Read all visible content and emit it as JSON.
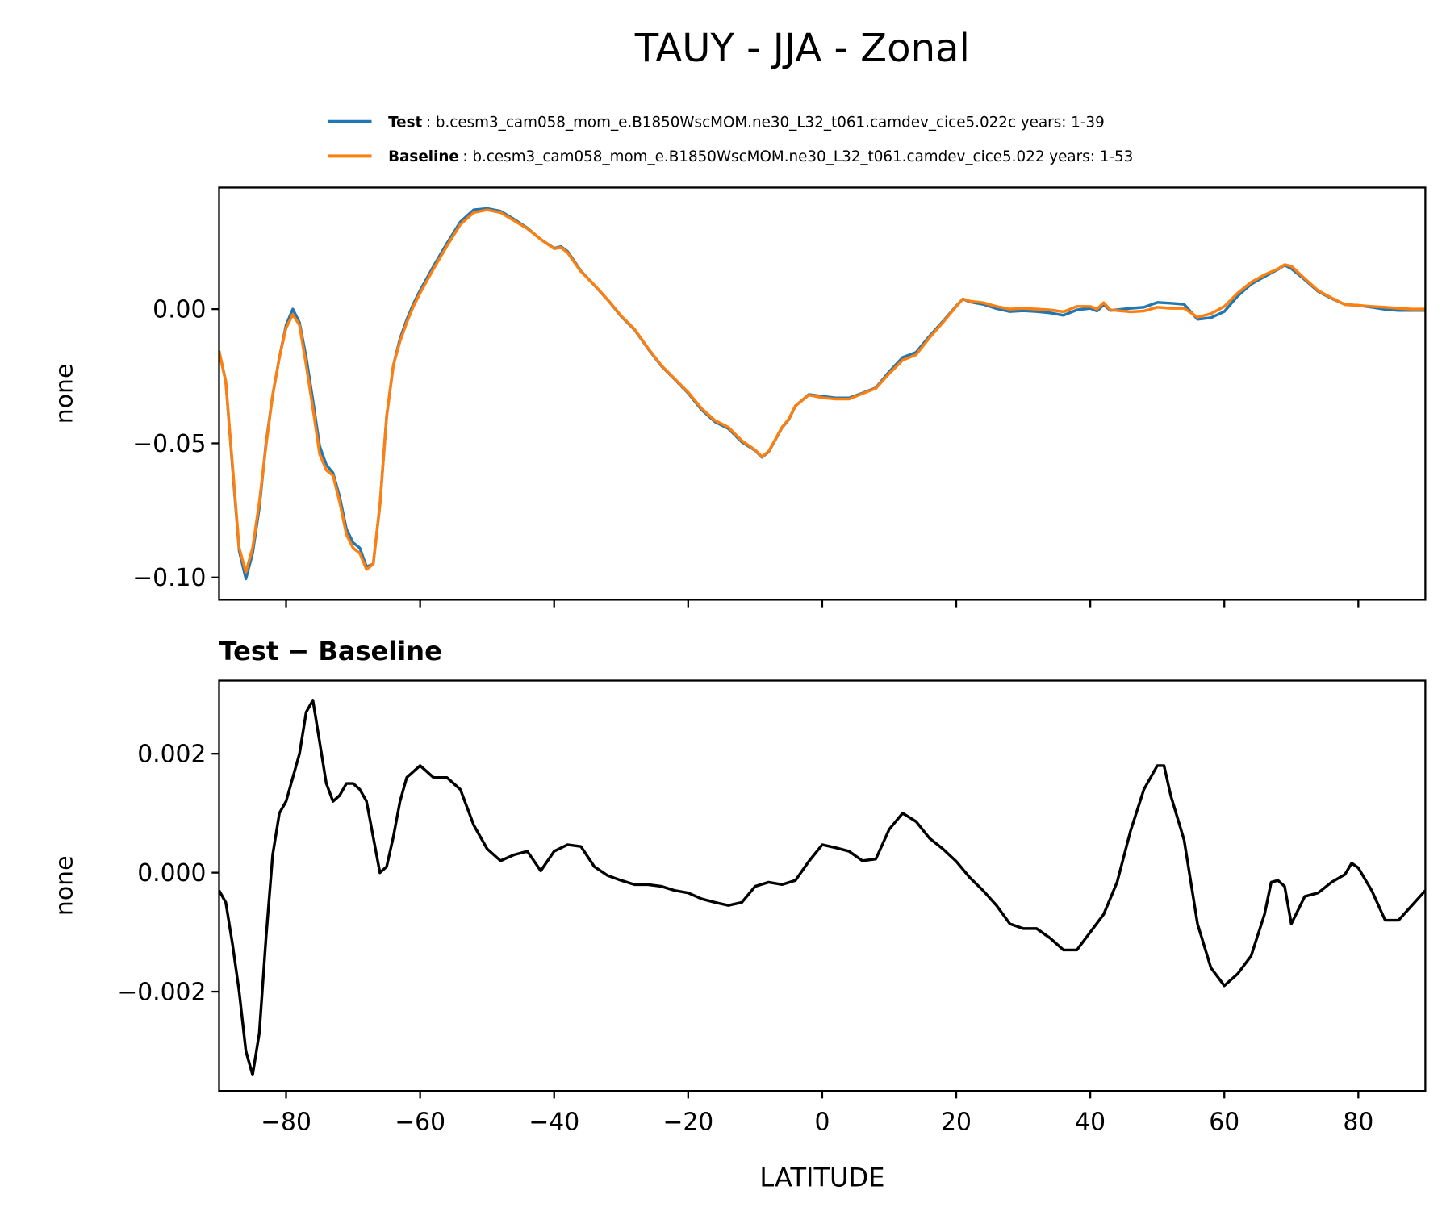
{
  "chart_data": [
    {
      "type": "line",
      "title": "TAUY - JJA - Zonal",
      "ylabel": "none",
      "sharex": true,
      "x": [
        -90,
        -89,
        -88,
        -87,
        -86,
        -85,
        -84,
        -83,
        -82,
        -81,
        -80,
        -79,
        -78,
        -77,
        -76,
        -75,
        -74,
        -73,
        -72,
        -71,
        -70,
        -69,
        -68,
        -67,
        -66,
        -65,
        -64,
        -63,
        -62,
        -61,
        -60,
        -58,
        -56,
        -54,
        -52,
        -50,
        -48,
        -46,
        -44,
        -42,
        -40,
        -39,
        -38,
        -36,
        -34,
        -32,
        -30,
        -28,
        -26,
        -24,
        -22,
        -20,
        -18,
        -16,
        -14,
        -12,
        -10,
        -9,
        -8,
        -6,
        -5,
        -4,
        -2,
        0,
        2,
        4,
        6,
        8,
        10,
        12,
        14,
        16,
        18,
        20,
        21,
        22,
        24,
        26,
        28,
        30,
        32,
        34,
        36,
        38,
        40,
        41,
        42,
        43,
        46,
        48,
        50,
        52,
        54,
        56,
        58,
        60,
        62,
        64,
        66,
        68,
        69,
        70,
        72,
        74,
        76,
        78,
        80,
        82,
        84,
        86,
        88,
        90
      ],
      "series": [
        {
          "name": "Test",
          "label": ":  b.cesm3_cam058_mom_e.B1850WscMOM.ne30_L32_t061.camdev_cice5.022c  years: 1-39",
          "color": "#1f77b4",
          "values": [
            -0.0156,
            -0.027,
            -0.059,
            -0.09,
            -0.1005,
            -0.091,
            -0.074,
            -0.05,
            -0.032,
            -0.018,
            -0.006,
            0,
            -0.005,
            -0.018,
            -0.034,
            -0.051,
            -0.058,
            -0.061,
            -0.07,
            -0.082,
            -0.087,
            -0.089,
            -0.096,
            -0.095,
            -0.073,
            -0.04,
            -0.021,
            -0.011,
            -0.004,
            0.002,
            0.007,
            0.016,
            0.0245,
            0.0325,
            0.037,
            0.0375,
            0.0365,
            0.0335,
            0.0302,
            0.026,
            0.0227,
            0.0233,
            0.0215,
            0.0142,
            0.0089,
            0.0034,
            -0.0027,
            -0.0077,
            -0.0147,
            -0.0212,
            -0.0262,
            -0.0313,
            -0.0375,
            -0.042,
            -0.0445,
            -0.0495,
            -0.0527,
            -0.0552,
            -0.0532,
            -0.0442,
            -0.0412,
            -0.0361,
            -0.0318,
            -0.0325,
            -0.0331,
            -0.0331,
            -0.0313,
            -0.0293,
            -0.0233,
            -0.018,
            -0.0161,
            -0.0101,
            -0.0046,
            0.0012,
            0.0038,
            0.0027,
            0.0018,
            0.0002,
            -0.0009,
            -0.0006,
            -0.0009,
            -0.0014,
            -0.0023,
            -0.0003,
            0.0003,
            -0.0007,
            0.0016,
            -0.0005,
            0.0003,
            0.0007,
            0.0025,
            0.0022,
            0.0018,
            -0.0038,
            -0.0032,
            -0.0009,
            0.0049,
            0.0093,
            0.0121,
            0.0148,
            0.0164,
            0.0151,
            0.011,
            0.0066,
            0.004,
            0.0017,
            0.0014,
            0.0007,
            -0.0001,
            -0.0005,
            -0.0005,
            -0.0005
          ]
        },
        {
          "name": "Baseline",
          "label": ":  b.cesm3_cam058_mom_e.B1850WscMOM.ne30_L32_t061.camdev_cice5.022  years: 1-53",
          "color": "#ff7f0e",
          "values": [
            -0.0156,
            -0.027,
            -0.058,
            -0.089,
            -0.098,
            -0.089,
            -0.072,
            -0.051,
            -0.032,
            -0.018,
            -0.007,
            -0.002,
            -0.006,
            -0.021,
            -0.037,
            -0.054,
            -0.06,
            -0.062,
            -0.072,
            -0.084,
            -0.089,
            -0.091,
            -0.097,
            -0.095,
            -0.073,
            -0.04,
            -0.021,
            -0.012,
            -0.005,
            0.001,
            0.006,
            0.015,
            0.0235,
            0.0315,
            0.036,
            0.037,
            0.036,
            0.033,
            0.03,
            0.026,
            0.0225,
            0.023,
            0.021,
            0.014,
            0.009,
            0.0035,
            -0.0025,
            -0.0075,
            -0.0145,
            -0.021,
            -0.026,
            -0.031,
            -0.037,
            -0.0415,
            -0.044,
            -0.049,
            -0.0525,
            -0.055,
            -0.053,
            -0.044,
            -0.041,
            -0.036,
            -0.032,
            -0.033,
            -0.0335,
            -0.0335,
            -0.0315,
            -0.0295,
            -0.024,
            -0.019,
            -0.017,
            -0.0107,
            -0.005,
            0.001,
            0.0038,
            0.003,
            0.0024,
            0.001,
            0,
            0.0003,
            0,
            -0.0003,
            -0.001,
            0.001,
            0.001,
            0,
            0.0024,
            -0.0003,
            -0.001,
            -0.0007,
            0.0007,
            0.0003,
            0.0003,
            -0.003,
            -0.0017,
            0.001,
            0.006,
            0.01,
            0.0128,
            0.015,
            0.0166,
            0.016,
            0.0114,
            0.0069,
            0.0042,
            0.0017,
            0.0014,
            0.001,
            0.0007,
            0.0003,
            0,
            0
          ]
        }
      ],
      "xlim": [
        -90,
        90
      ],
      "xticks": [
        {
          "value": -80,
          "label": "−80"
        },
        {
          "value": -60,
          "label": "−60"
        },
        {
          "value": -40,
          "label": "−40"
        },
        {
          "value": -20,
          "label": "−20"
        },
        0,
        20,
        40,
        60,
        80
      ],
      "ylim": [
        -0.1083,
        0.0453
      ],
      "yticks": [
        {
          "value": -0.1,
          "label": "−0.10"
        },
        {
          "value": -0.05,
          "label": "−0.05"
        },
        {
          "value": 0,
          "label": "0.00"
        }
      ]
    },
    {
      "type": "line",
      "title": "Test − Baseline",
      "ylabel": "none",
      "xlabel": "LATITUDE",
      "x": [
        -90,
        -89,
        -88,
        -87,
        -86,
        -85,
        -84,
        -83,
        -82,
        -81,
        -80,
        -79,
        -78,
        -77,
        -76,
        -75,
        -74,
        -73,
        -72,
        -71,
        -70,
        -69,
        -68,
        -67,
        -66,
        -65,
        -64,
        -63,
        -62,
        -61,
        -60,
        -58,
        -56,
        -54,
        -52,
        -50,
        -48,
        -46,
        -44,
        -42,
        -40,
        -38,
        -36,
        -34,
        -32,
        -30,
        -28,
        -26,
        -24,
        -22,
        -20,
        -18,
        -16,
        -14,
        -12,
        -10,
        -8,
        -6,
        -4,
        -2,
        0,
        2,
        4,
        6,
        8,
        10,
        12,
        14,
        16,
        18,
        20,
        22,
        24,
        26,
        28,
        30,
        32,
        34,
        36,
        38,
        40,
        42,
        44,
        46,
        48,
        50,
        51,
        52,
        54,
        56,
        58,
        60,
        62,
        64,
        66,
        67,
        68,
        69,
        70,
        72,
        74,
        76,
        78,
        79,
        80,
        82,
        84,
        86,
        88,
        90
      ],
      "series": [
        {
          "name": "Test − Baseline",
          "color": "#000000",
          "values": [
            -0.0003,
            -0.0005,
            -0.0012,
            -0.002,
            -0.003,
            -0.0034,
            -0.0027,
            -0.0011,
            0.0003,
            0.001,
            0.0012,
            0.0016,
            0.002,
            0.0027,
            0.0029,
            0.0022,
            0.0015,
            0.0012,
            0.0013,
            0.0015,
            0.0015,
            0.0014,
            0.0012,
            0.0006,
            0,
            0.0001,
            0.0006,
            0.0012,
            0.0016,
            0.0017,
            0.0018,
            0.0016,
            0.0016,
            0.0014,
            0.0008,
            0.0004,
            0.0002,
            0.0003,
            0.00036,
            3e-05,
            0.00036,
            0.00047,
            0.00044,
            0.0001,
            -5e-05,
            -0.00013,
            -0.0002,
            -0.0002,
            -0.00023,
            -0.0003,
            -0.00034,
            -0.00044,
            -0.0005,
            -0.00055,
            -0.0005,
            -0.00023,
            -0.00016,
            -0.0002,
            -0.00013,
            0.00019,
            0.00047,
            0.00042,
            0.00036,
            0.0002,
            0.00023,
            0.00073,
            0.001,
            0.00086,
            0.00058,
            0.0004,
            0.00019,
            -8e-05,
            -0.0003,
            -0.00055,
            -0.00086,
            -0.00094,
            -0.00094,
            -0.0011,
            -0.0013,
            -0.0013,
            -0.001,
            -0.0007,
            -0.00016,
            0.0007,
            0.0014,
            0.0018,
            0.0018,
            0.0013,
            0.00055,
            -0.00086,
            -0.0016,
            -0.0019,
            -0.0017,
            -0.0014,
            -0.0007,
            -0.00016,
            -0.00013,
            -0.00023,
            -0.00086,
            -0.0004,
            -0.00034,
            -0.00016,
            -3e-05,
            0.00016,
            8e-05,
            -0.0003,
            -0.0008,
            -0.0008,
            -0.00055,
            -0.0003
          ]
        }
      ],
      "xlim": [
        -90,
        90
      ],
      "xticks": [
        {
          "value": -80,
          "label": "−80"
        },
        {
          "value": -60,
          "label": "−60"
        },
        {
          "value": -40,
          "label": "−40"
        },
        {
          "value": -20,
          "label": "−20"
        },
        0,
        20,
        40,
        60,
        80
      ],
      "ylim": [
        -0.00367,
        0.00323
      ],
      "yticks": [
        {
          "value": -0.002,
          "label": "−0.002"
        },
        {
          "value": 0,
          "label": "0.000"
        },
        {
          "value": 0.002,
          "label": "0.002"
        }
      ]
    }
  ]
}
